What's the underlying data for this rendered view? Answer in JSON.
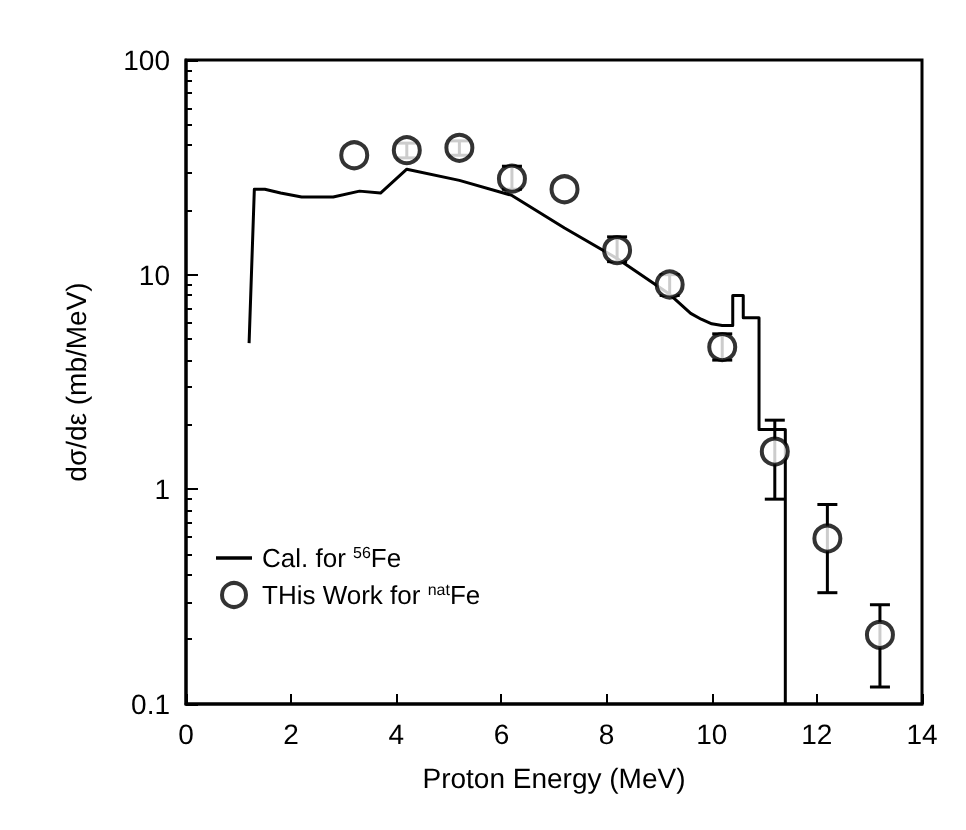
{
  "chart_data": {
    "type": "scatter",
    "xlabel": "Proton Energy (MeV)",
    "ylabel": "dσ/dε (mb/MeV)",
    "xlim": [
      0,
      14
    ],
    "xticks": [
      0,
      2,
      4,
      6,
      8,
      10,
      12,
      14
    ],
    "ylim": [
      0.1,
      100
    ],
    "yticks": [
      0.1,
      1,
      10,
      100
    ],
    "log": "y",
    "grid": false,
    "legend": "bottom left",
    "series": [
      {
        "name": "Cal. for $^{56}$Fe",
        "type": "line",
        "color": "#000000",
        "marker": "none",
        "line_style": "solid",
        "x": [
          1.2,
          1.3,
          1.5,
          1.8,
          2.2,
          2.8,
          3.3,
          3.7,
          4.2,
          5.2,
          6.2,
          7.2,
          8.2,
          9.2,
          9.6,
          9.8,
          10.0,
          10.2,
          10.4,
          10.4,
          10.6,
          10.6,
          10.9,
          10.9,
          11.1,
          11.1,
          11.4,
          11.4
        ],
        "values": [
          4.8,
          25,
          25,
          24,
          23,
          23,
          24.5,
          24,
          31,
          27.5,
          23.4,
          16.5,
          11.9,
          8.1,
          6.6,
          6.2,
          5.9,
          5.8,
          5.8,
          8,
          8,
          6.3,
          6.3,
          1.9,
          1.9,
          1.9,
          1.9,
          0.1
        ]
      },
      {
        "name": "THis Work for $^{nat}$Fe",
        "color": "#000000",
        "marker": "circle",
        "x": [
          3.2,
          4.2,
          5.2,
          6.2,
          7.2,
          8.2,
          9.2,
          10.2,
          11.2,
          12.2,
          13.2
        ],
        "values": [
          36,
          38,
          39,
          28,
          25,
          13,
          9,
          4.6,
          1.5,
          0.59,
          0.21
        ],
        "errors": [
          null,
          [
            35,
            41
          ],
          [
            36,
            42
          ],
          [
            25,
            32
          ],
          null,
          [
            11.5,
            15
          ],
          [
            8,
            10
          ],
          [
            4,
            5.3
          ],
          [
            0.9,
            2.1
          ],
          [
            0.33,
            0.85
          ],
          [
            0.12,
            0.29
          ]
        ]
      }
    ]
  }
}
